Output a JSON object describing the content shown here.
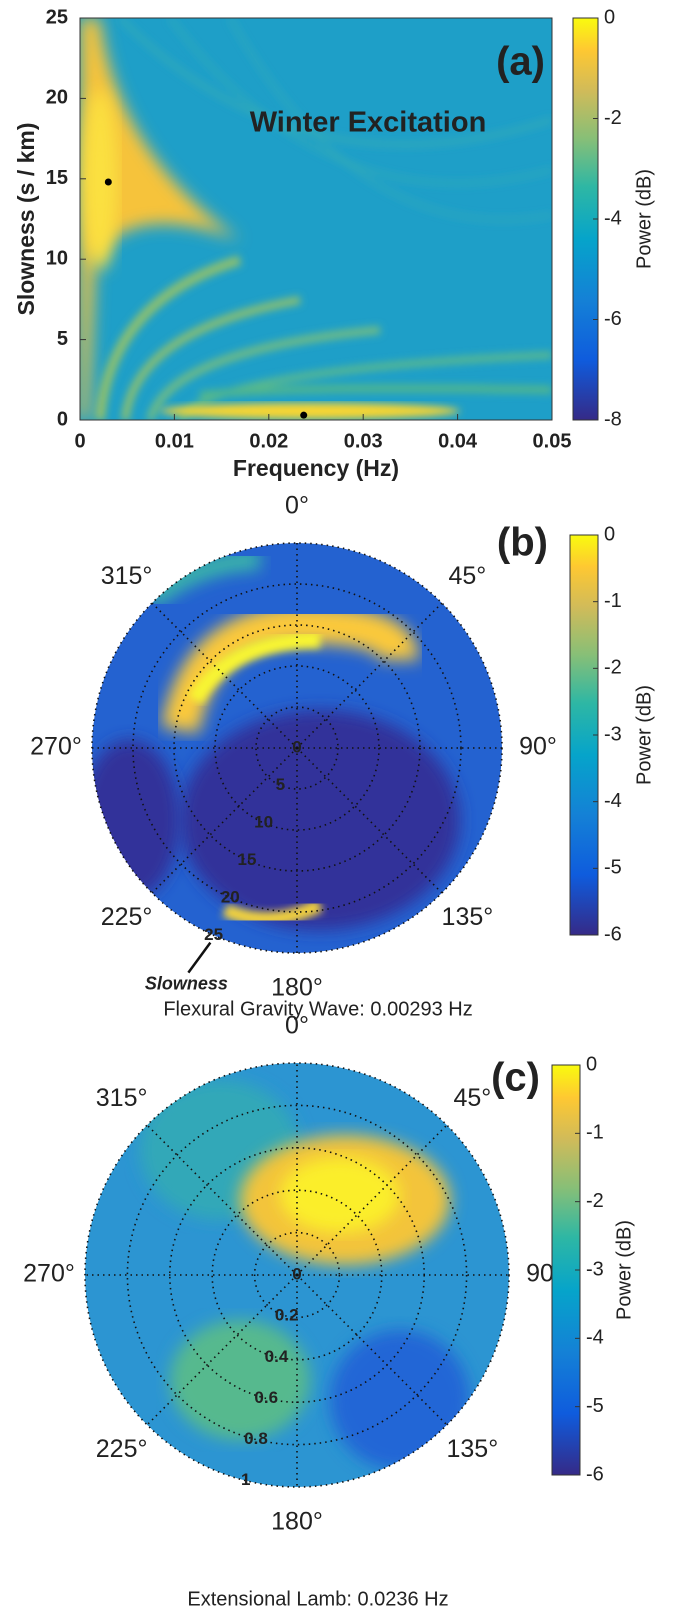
{
  "chart_data": [
    {
      "type": "heatmap",
      "title": "(a)",
      "annotation": "Winter Excitation",
      "xlabel": "Frequency  (Hz)",
      "ylabel": "Slowness  (s / km)",
      "xlim": [
        0,
        0.05
      ],
      "xticks": [
        0,
        0.01,
        0.02,
        0.03,
        0.04,
        0.05
      ],
      "ylim": [
        0,
        25
      ],
      "yticks": [
        0,
        5,
        10,
        15,
        20,
        25
      ],
      "markers": {
        "x": [
          0.003,
          0.0237
        ],
        "y": [
          14.8,
          0.3
        ],
        "color": "#000000"
      },
      "clabel": "Power (dB)",
      "clim": [
        -8,
        0
      ],
      "cticks": [
        -8,
        -6,
        -4,
        -2,
        0
      ]
    },
    {
      "type": "polar",
      "title": "(b)",
      "caption": "Flexural Gravity Wave:  0.00293 Hz",
      "rlabel": "Slowness",
      "rlim": [
        0,
        25
      ],
      "rticks": [
        0,
        5,
        10,
        15,
        20,
        25
      ],
      "angleticks": [
        {
          "value": 0,
          "label": "0°"
        },
        {
          "value": 45,
          "label": "45°"
        },
        {
          "value": 90,
          "label": "90°"
        },
        {
          "value": 135,
          "label": "135°"
        },
        {
          "value": 180,
          "label": "180°"
        },
        {
          "value": 225,
          "label": "225°"
        },
        {
          "value": 270,
          "label": "270°"
        },
        {
          "value": 315,
          "label": "315°"
        }
      ],
      "clabel": "Power (dB)",
      "clim": [
        -6,
        0
      ],
      "cticks": [
        -6,
        -5,
        -4,
        -3,
        -2,
        -1,
        0
      ]
    },
    {
      "type": "polar",
      "title": "(c)",
      "caption": "Extensional Lamb: 0.0236 Hz",
      "rlim": [
        0,
        1
      ],
      "rticks": [
        0,
        0.2,
        0.4,
        0.6,
        0.8,
        1
      ],
      "angleticks": [
        {
          "value": 0,
          "label": "0°"
        },
        {
          "value": 45,
          "label": "45°"
        },
        {
          "value": 90,
          "label": "90°"
        },
        {
          "value": 135,
          "label": "135°"
        },
        {
          "value": 180,
          "label": "180°"
        },
        {
          "value": 225,
          "label": "225°"
        },
        {
          "value": 270,
          "label": "270°"
        },
        {
          "value": 315,
          "label": "315°"
        }
      ],
      "clabel": "Power (dB)",
      "clim": [
        -6,
        0
      ],
      "cticks": [
        -6,
        -5,
        -4,
        -3,
        -2,
        -1,
        0
      ]
    }
  ]
}
